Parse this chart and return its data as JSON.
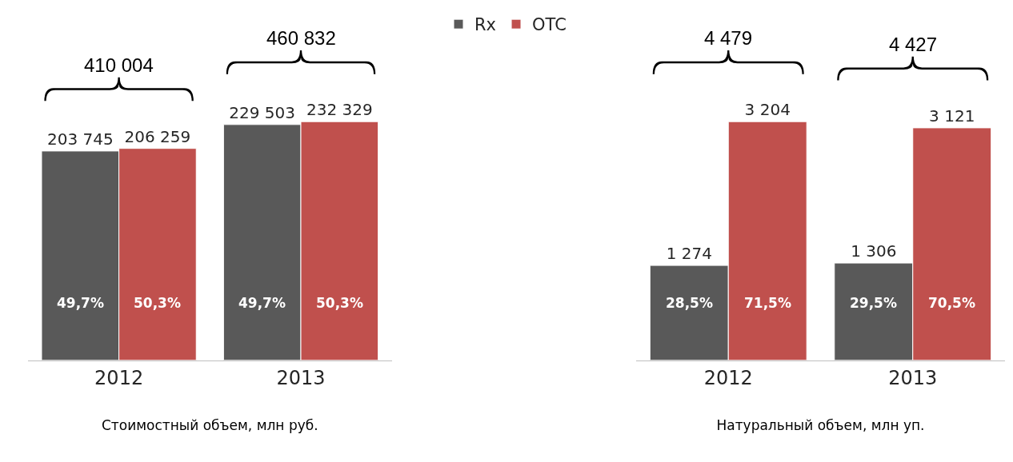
{
  "chart_data": [
    {
      "type": "bar",
      "xlabel": "Стоимостный объем, млн руб.",
      "categories": [
        "2012",
        "2013"
      ],
      "legend": "top",
      "series": [
        {
          "name": "Rx",
          "color": "#595959",
          "values": [
            203745,
            229503
          ],
          "value_labels": [
            "203 745",
            "229 503"
          ]
        },
        {
          "name": "OTC",
          "color": "#c0504d",
          "values": [
            206259,
            232329
          ],
          "value_labels": [
            "206 259",
            "232 329"
          ]
        }
      ],
      "annotations": [
        "410 004",
        "460 832",
        "49,7%",
        "49,7%",
        "50,3%",
        "50,3%"
      ]
    },
    {
      "type": "bar",
      "xlabel": "Натуральный объем, млн уп.",
      "categories": [
        "2012",
        "2013"
      ],
      "series": [
        {
          "color": "#595959",
          "values": [
            1274,
            1306
          ],
          "value_labels": [
            "1 274",
            "1 306"
          ]
        },
        {
          "color": "#c0504d",
          "values": [
            3204,
            3121
          ],
          "value_labels": [
            "3 204",
            "3 121"
          ]
        }
      ],
      "annotations": [
        "4 479",
        "4 427",
        "28,5%",
        "29,5%",
        "71,5%",
        "70,5%"
      ]
    }
  ]
}
